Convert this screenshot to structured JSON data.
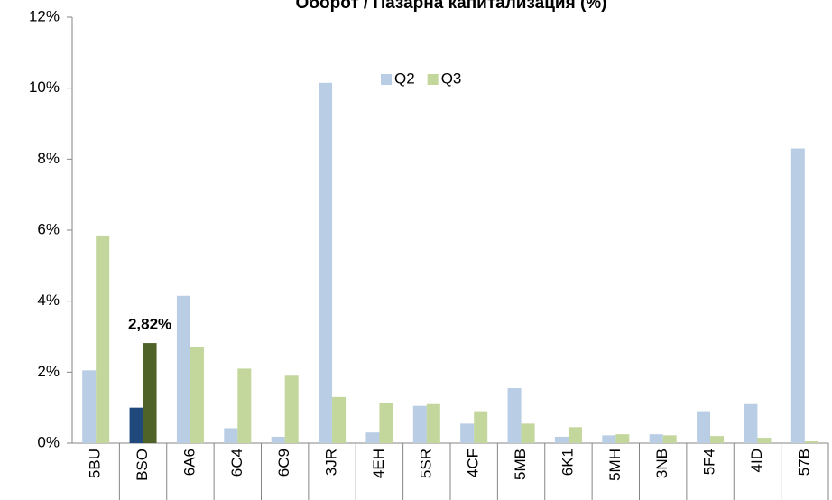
{
  "chart_data": {
    "type": "bar",
    "title": "Оборот / Пазарна капитализация (%)",
    "categories": [
      "5BU",
      "BSO",
      "6A6",
      "6C4",
      "6C9",
      "3JR",
      "4EH",
      "5SR",
      "4CF",
      "5MB",
      "6K1",
      "5MH",
      "3NB",
      "5F4",
      "4ID",
      "57B"
    ],
    "series": [
      {
        "name": "Q2",
        "color": "#b9cde5",
        "point_colors": {
          "1": "#1f497d"
        },
        "values": [
          2.05,
          1.0,
          4.15,
          0.42,
          0.18,
          10.15,
          0.3,
          1.05,
          0.55,
          1.55,
          0.18,
          0.22,
          0.25,
          0.9,
          1.1,
          8.3
        ]
      },
      {
        "name": "Q3",
        "color": "#c3d69b",
        "point_colors": {
          "1": "#4f6228"
        },
        "values": [
          5.85,
          2.82,
          2.7,
          2.1,
          1.9,
          1.3,
          1.12,
          1.1,
          0.9,
          0.55,
          0.45,
          0.25,
          0.22,
          0.2,
          0.15,
          0.05
        ],
        "value_labels": [
          null,
          "2,82%",
          null,
          null,
          null,
          null,
          null,
          null,
          null,
          null,
          null,
          null,
          null,
          null,
          null,
          null
        ]
      }
    ],
    "ylim": [
      0,
      12
    ],
    "yticks": [
      {
        "value": 0,
        "label": "0%"
      },
      {
        "value": 2,
        "label": "2%"
      },
      {
        "value": 4,
        "label": "4%"
      },
      {
        "value": 6,
        "label": "6%"
      },
      {
        "value": 8,
        "label": "8%"
      },
      {
        "value": 10,
        "label": "10%"
      },
      {
        "value": 12,
        "label": "12%"
      }
    ],
    "grid": false,
    "legend": "top"
  }
}
